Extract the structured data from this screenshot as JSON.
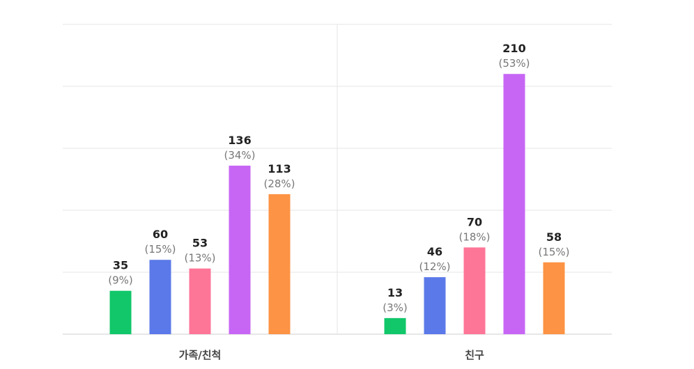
{
  "chart_data": {
    "type": "bar",
    "categories": [
      "가족/친척",
      "친구"
    ],
    "series": [
      {
        "values": [
          35,
          13
        ],
        "percents": [
          "(9%)",
          "(3%)"
        ],
        "color": "#11c76a"
      },
      {
        "values": [
          60,
          46
        ],
        "percents": [
          "(15%)",
          "(12%)"
        ],
        "color": "#5b79e8"
      },
      {
        "values": [
          53,
          70
        ],
        "percents": [
          "(13%)",
          "(18%)"
        ],
        "color": "#fd7597"
      },
      {
        "values": [
          136,
          210
        ],
        "percents": [
          "(34%)",
          "(53%)"
        ],
        "color": "#c766f5"
      },
      {
        "values": [
          113,
          58
        ],
        "percents": [
          "(28%)",
          "(15%)"
        ],
        "color": "#fd9344"
      }
    ],
    "ylim": [
      0,
      250
    ],
    "grid": true,
    "legend": "none"
  }
}
